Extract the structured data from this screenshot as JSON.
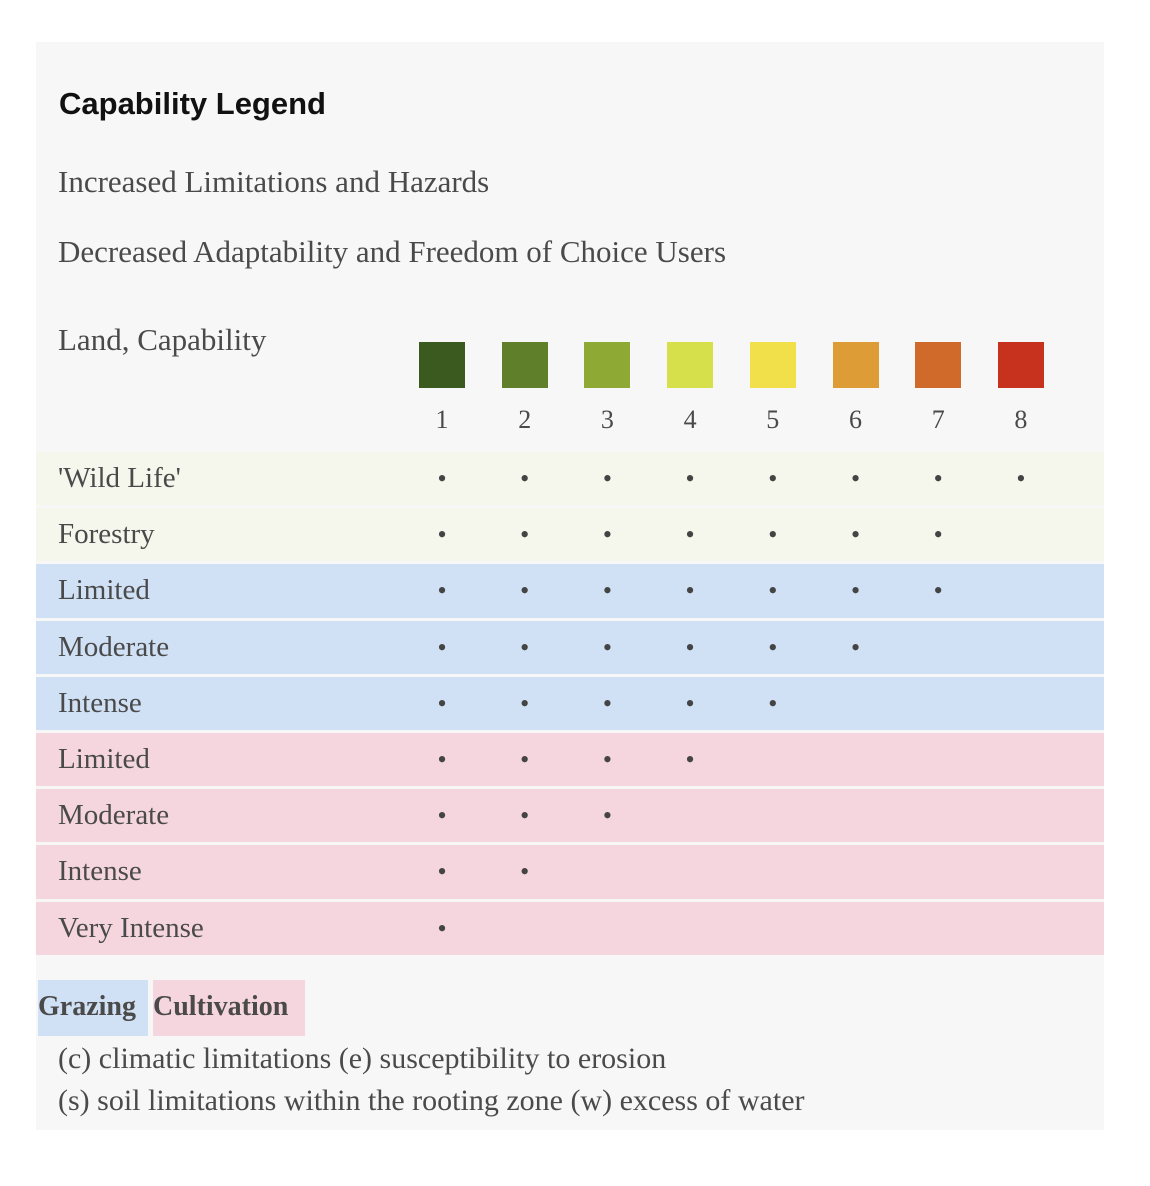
{
  "title": "Capability Legend",
  "subtitle_lines": [
    "Increased Limitations and Hazards",
    "Decreased Adaptability and Freedom of Choice Users"
  ],
  "scale": {
    "label": "Land, Capability",
    "classes": [
      {
        "number": 1,
        "color": "#3a5a20"
      },
      {
        "number": 2,
        "color": "#5f7f2a"
      },
      {
        "number": 3,
        "color": "#8eaa35"
      },
      {
        "number": 4,
        "color": "#d5e04a"
      },
      {
        "number": 5,
        "color": "#f2e04a"
      },
      {
        "number": 6,
        "color": "#dd9c35"
      },
      {
        "number": 7,
        "color": "#d06a2a"
      },
      {
        "number": 8,
        "color": "#c6321d"
      }
    ]
  },
  "rows": [
    {
      "label": "'Wild Life'",
      "color": "#f5f6ec",
      "cells": [
        "•",
        "•",
        "•",
        "•",
        "•",
        "•",
        "•",
        "•"
      ]
    },
    {
      "label": "Forestry",
      "color": "#f5f6ec",
      "cells": [
        "•",
        "•",
        "•",
        "•",
        "•",
        "•",
        "•",
        null
      ]
    },
    {
      "label": "Limited",
      "color": "#d0e0f5",
      "cells": [
        "•",
        "•",
        "•",
        "•",
        "•",
        "•",
        "•",
        null
      ]
    },
    {
      "label": "Moderate",
      "color": "#d0e0f5",
      "cells": [
        "•",
        "•",
        "•",
        "•",
        "•",
        "•",
        null,
        null
      ]
    },
    {
      "label": "Intense",
      "color": "#d0e0f5",
      "cells": [
        "•",
        "•",
        "•",
        "•",
        "•",
        null,
        null,
        null
      ]
    },
    {
      "label": "Limited",
      "color": "#f5d6df",
      "cells": [
        "•",
        "•",
        "•",
        "•",
        null,
        null,
        null,
        null
      ]
    },
    {
      "label": "Moderate",
      "color": "#f5d6df",
      "cells": [
        "•",
        "•",
        "•",
        null,
        null,
        null,
        null,
        null
      ]
    },
    {
      "label": "Intense",
      "color": "#f5d6df",
      "cells": [
        "•",
        "•",
        null,
        null,
        null,
        null,
        null,
        null
      ]
    },
    {
      "label": "Very Intense",
      "color": "#f5d6df",
      "cells": [
        "•",
        null,
        null,
        null,
        null,
        null,
        null,
        null
      ]
    }
  ],
  "key": [
    {
      "label": "Grazing",
      "color": "#d0e0f5"
    },
    {
      "label": "Cultivation",
      "color": "#f5d6df"
    }
  ],
  "notes": [
    "(c) climatic limitations (e) susceptibility to erosion",
    "(s) soil limitations within the rooting zone (w) excess of water"
  ]
}
